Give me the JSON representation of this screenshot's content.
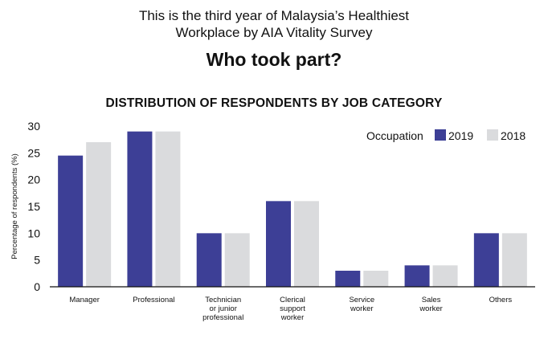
{
  "header": {
    "line1": "This is the third year of Malaysia’s Healthiest",
    "line2": "Workplace by AIA Vitality Survey",
    "subtitle": "Who took part?"
  },
  "chart_data": {
    "type": "bar",
    "title": "DISTRIBUTION OF RESPONDENTS BY JOB CATEGORY",
    "ylabel": "Percentage of respondents (%)",
    "xlabel": "",
    "ylim": [
      0,
      30
    ],
    "yticks": [
      0,
      5,
      10,
      15,
      20,
      25,
      30
    ],
    "grid": false,
    "legend": {
      "title": "Occupation",
      "position": "top-right"
    },
    "categories": [
      [
        "Manager"
      ],
      [
        "Professional"
      ],
      [
        "Technician",
        "or junior",
        "professional"
      ],
      [
        "Clerical",
        "support",
        "worker"
      ],
      [
        "Service",
        "worker"
      ],
      [
        "Sales",
        "worker"
      ],
      [
        "Others"
      ]
    ],
    "series": [
      {
        "name": "2019",
        "color": "#3d3f96",
        "values": [
          24.5,
          29,
          10,
          16,
          3,
          4,
          10
        ]
      },
      {
        "name": "2018",
        "color": "#dadbdd",
        "values": [
          27,
          29,
          10,
          16,
          3,
          4,
          10
        ]
      }
    ]
  }
}
